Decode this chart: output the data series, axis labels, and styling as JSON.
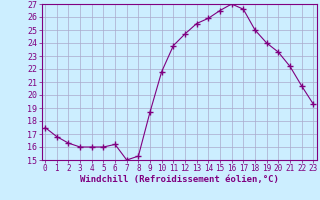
{
  "x": [
    0,
    1,
    2,
    3,
    4,
    5,
    6,
    7,
    8,
    9,
    10,
    11,
    12,
    13,
    14,
    15,
    16,
    17,
    18,
    19,
    20,
    21,
    22,
    23
  ],
  "y": [
    17.5,
    16.8,
    16.3,
    16.0,
    16.0,
    16.0,
    16.2,
    15.0,
    15.3,
    18.7,
    21.8,
    23.8,
    24.7,
    25.5,
    25.9,
    26.5,
    27.0,
    26.6,
    25.0,
    24.0,
    23.3,
    22.2,
    20.7,
    19.3
  ],
  "ylim": [
    15,
    27
  ],
  "yticks": [
    15,
    16,
    17,
    18,
    19,
    20,
    21,
    22,
    23,
    24,
    25,
    26,
    27
  ],
  "xticks": [
    0,
    1,
    2,
    3,
    4,
    5,
    6,
    7,
    8,
    9,
    10,
    11,
    12,
    13,
    14,
    15,
    16,
    17,
    18,
    19,
    20,
    21,
    22,
    23
  ],
  "xlabel": "Windchill (Refroidissement éolien,°C)",
  "line_color": "#800080",
  "marker": "+",
  "marker_size": 4,
  "bg_color": "#cceeff",
  "grid_color": "#aaaacc",
  "title": ""
}
